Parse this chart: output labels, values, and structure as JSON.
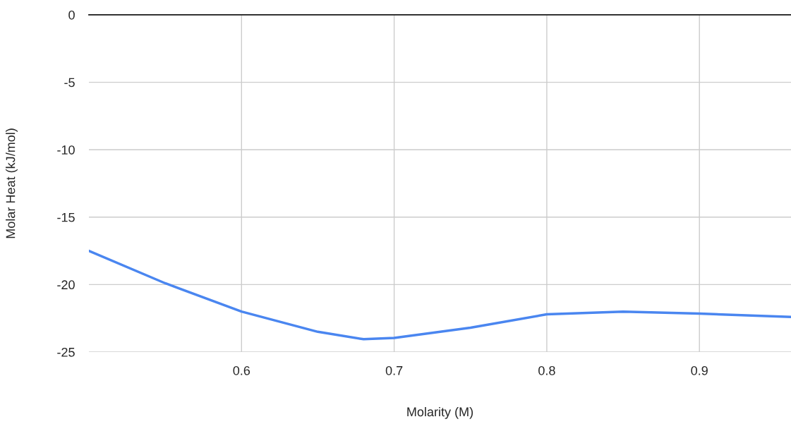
{
  "chart_data": {
    "type": "line",
    "xlabel": "Molarity (M)",
    "ylabel": "Molar Heat (kJ/mol)",
    "x": [
      0.5,
      0.55,
      0.6,
      0.65,
      0.68,
      0.7,
      0.75,
      0.8,
      0.85,
      0.9,
      0.96
    ],
    "series": [
      {
        "color": "#4a86f0",
        "values": [
          -17.5,
          -19.9,
          -22.0,
          -23.5,
          -24.05,
          -23.95,
          -23.2,
          -22.2,
          -22.0,
          -22.15,
          -22.4
        ]
      }
    ],
    "xlim": [
      0.5,
      0.96
    ],
    "xticks": [
      0.6,
      0.7,
      0.8,
      0.9
    ],
    "ylim": [
      -25,
      0
    ],
    "yticks": [
      0,
      -5,
      -10,
      -15,
      -20,
      -25
    ],
    "grid": true,
    "marker": "none",
    "line_style": "solid"
  }
}
